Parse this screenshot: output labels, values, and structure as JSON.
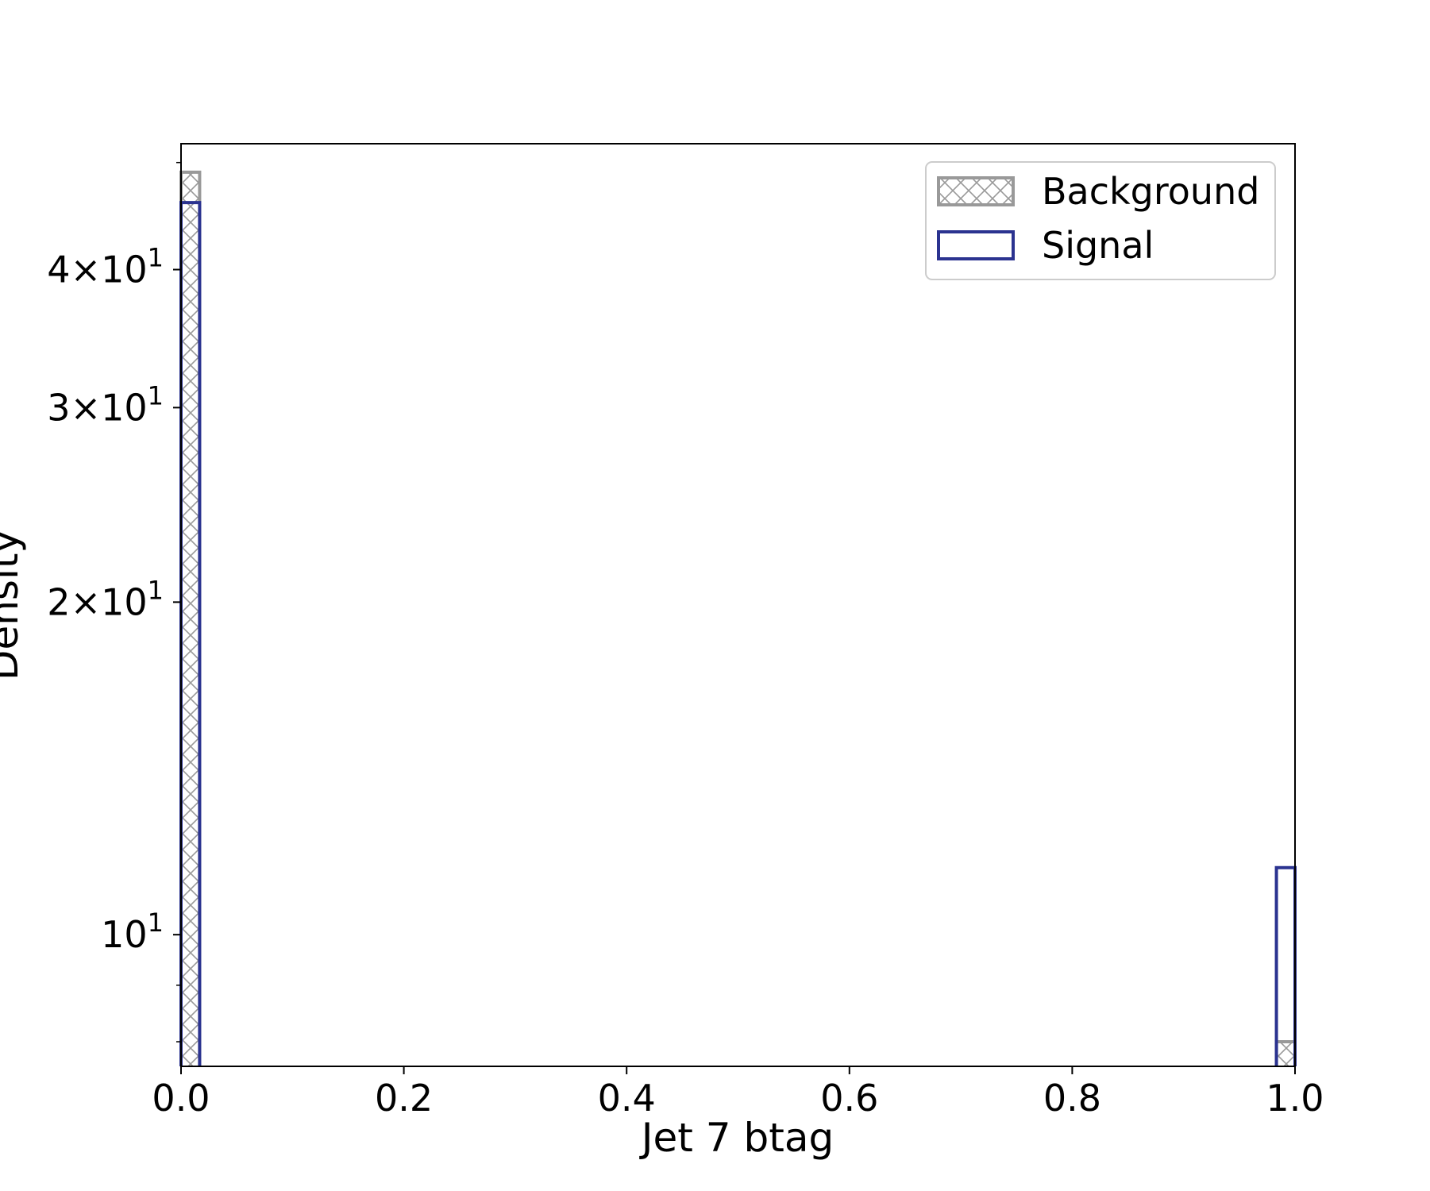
{
  "chart_data": {
    "type": "bar",
    "subtype": "histogram",
    "xlabel": "Jet 7 btag",
    "ylabel": "Density",
    "xlim": [
      0.0,
      1.0
    ],
    "ylim": [
      7.6,
      52
    ],
    "yscale": "log",
    "grid": false,
    "legend_position": "upper right",
    "x_ticks": [
      "0.0",
      "0.2",
      "0.4",
      "0.6",
      "0.8",
      "1.0"
    ],
    "y_ticks": [
      {
        "value": 10,
        "mantissa": "",
        "base": "10",
        "exp": "1"
      },
      {
        "value": 20,
        "mantissa": "2",
        "base": "10",
        "exp": "1"
      },
      {
        "value": 30,
        "mantissa": "3",
        "base": "10",
        "exp": "1"
      },
      {
        "value": 40,
        "mantissa": "4",
        "base": "10",
        "exp": "1"
      }
    ],
    "bin_width": 0.0167,
    "series": [
      {
        "name": "Background",
        "style": "hatched",
        "color": "#999999",
        "bins": [
          {
            "x0": 0.0,
            "x1": 0.0167,
            "value": 49.0
          },
          {
            "x0": 0.9833,
            "x1": 1.0,
            "value": 8.0
          }
        ]
      },
      {
        "name": "Signal",
        "style": "step",
        "color": "#2b3390",
        "bins": [
          {
            "x0": 0.0,
            "x1": 0.0167,
            "value": 46.0
          },
          {
            "x0": 0.9833,
            "x1": 1.0,
            "value": 11.5
          }
        ]
      }
    ]
  }
}
